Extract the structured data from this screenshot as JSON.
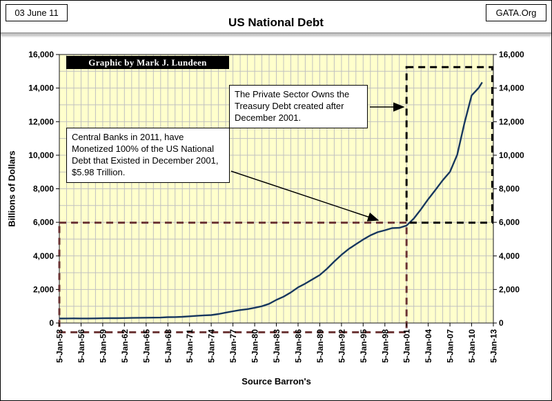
{
  "header": {
    "date": "03 June 11",
    "title": "US National Debt",
    "org": "GATA.Org"
  },
  "chart_data": {
    "type": "line",
    "title": "US National Debt",
    "xlabel": "Source Barron's",
    "ylabel": "Billions of Dollars",
    "xlim": [
      1953,
      2013
    ],
    "ylim": [
      0,
      16000
    ],
    "grid": {
      "x_step": 1,
      "y_step": 1000
    },
    "x_tick_years": [
      1953,
      1956,
      1959,
      1962,
      1965,
      1968,
      1971,
      1974,
      1977,
      1980,
      1983,
      1986,
      1989,
      1992,
      1995,
      1998,
      2001,
      2004,
      2007,
      2010,
      2013
    ],
    "x_tick_labels": [
      "5-Jan-53",
      "5-Jan-56",
      "5-Jan-59",
      "5-Jan-62",
      "5-Jan-65",
      "5-Jan-68",
      "5-Jan-71",
      "5-Jan-74",
      "5-Jan-77",
      "5-Jan-80",
      "5-Jan-83",
      "5-Jan-86",
      "5-Jan-89",
      "5-Jan-92",
      "5-Jan-95",
      "5-Jan-98",
      "5-Jan-01",
      "5-Jan-04",
      "5-Jan-07",
      "5-Jan-10",
      "5-Jan-13"
    ],
    "y_ticks": [
      0,
      2000,
      4000,
      6000,
      8000,
      10000,
      12000,
      14000,
      16000
    ],
    "y_tick_labels": [
      "0",
      "2,000",
      "4,000",
      "6,000",
      "8,000",
      "10,000",
      "12,000",
      "14,000",
      "16,000"
    ],
    "colors": {
      "plot_bg": "#FFFFCC",
      "grid": "#C0C0C0",
      "line": "#17375E",
      "monetized_region": "#6B3434",
      "private_region": "#000000"
    },
    "series": [
      {
        "name": "US National Debt",
        "color": "#17375E",
        "points": [
          [
            1953,
            266
          ],
          [
            1954,
            271
          ],
          [
            1955,
            274
          ],
          [
            1956,
            273
          ],
          [
            1957,
            271
          ],
          [
            1958,
            276
          ],
          [
            1959,
            285
          ],
          [
            1960,
            286
          ],
          [
            1961,
            289
          ],
          [
            1962,
            298
          ],
          [
            1963,
            306
          ],
          [
            1964,
            312
          ],
          [
            1965,
            317
          ],
          [
            1966,
            320
          ],
          [
            1967,
            326
          ],
          [
            1968,
            348
          ],
          [
            1969,
            354
          ],
          [
            1970,
            371
          ],
          [
            1971,
            398
          ],
          [
            1972,
            427
          ],
          [
            1973,
            458
          ],
          [
            1974,
            475
          ],
          [
            1975,
            533
          ],
          [
            1976,
            620
          ],
          [
            1977,
            699
          ],
          [
            1978,
            772
          ],
          [
            1979,
            827
          ],
          [
            1980,
            908
          ],
          [
            1981,
            998
          ],
          [
            1982,
            1142
          ],
          [
            1983,
            1377
          ],
          [
            1984,
            1572
          ],
          [
            1985,
            1823
          ],
          [
            1986,
            2125
          ],
          [
            1987,
            2350
          ],
          [
            1988,
            2602
          ],
          [
            1989,
            2857
          ],
          [
            1990,
            3233
          ],
          [
            1991,
            3665
          ],
          [
            1992,
            4065
          ],
          [
            1993,
            4411
          ],
          [
            1994,
            4693
          ],
          [
            1995,
            4974
          ],
          [
            1996,
            5225
          ],
          [
            1997,
            5413
          ],
          [
            1998,
            5526
          ],
          [
            1999,
            5656
          ],
          [
            2000,
            5674
          ],
          [
            2001,
            5807
          ],
          [
            2002,
            6228
          ],
          [
            2003,
            6783
          ],
          [
            2004,
            7379
          ],
          [
            2005,
            7933
          ],
          [
            2006,
            8507
          ],
          [
            2007,
            9008
          ],
          [
            2008,
            10025
          ],
          [
            2009,
            11910
          ],
          [
            2010,
            13562
          ],
          [
            2011,
            14025
          ],
          [
            2011.45,
            14344
          ]
        ]
      }
    ],
    "regions": [
      {
        "name": "monetized-debt-region",
        "x0": 1953,
        "x1": 2001,
        "y0": -550,
        "y1": 5980,
        "color": "#6B3434",
        "style": "dashed"
      },
      {
        "name": "private-sector-region",
        "x0": 2001,
        "x1": 2012.85,
        "y0": 5980,
        "y1": 15250,
        "color": "#000000",
        "style": "dashed"
      }
    ],
    "annotations": {
      "credit": "Graphic by Mark J. Lundeen",
      "private_sector": "The Private Sector Owns the Treasury Debt created after December 2001.",
      "central_banks": "Central Banks in 2011, have Monetized 100% of the US National Debt that Existed in December 2001, $5.98 Trillion."
    }
  }
}
